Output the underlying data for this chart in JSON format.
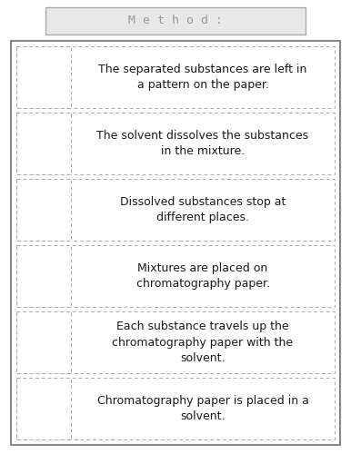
{
  "title": "M e t h o d :",
  "title_box_color": "#e8e8e8",
  "rows": [
    "The separated substances are left in\na pattern on the paper.",
    "The solvent dissolves the substances\nin the mixture.",
    "Dissolved substances stop at\ndifferent places.",
    "Mixtures are placed on\nchromatography paper.",
    "Each substance travels up the\nchromatography paper with the\nsolvent.",
    "Chromatography paper is placed in a\nsolvent."
  ],
  "text_color": "#1a1a1a",
  "title_fontsize": 9.5,
  "row_fontsize": 9.0,
  "fig_bg": "#ffffff",
  "outer_edge": "#888888",
  "inner_edge": "#aaaaaa",
  "title_edge": "#aaaaaa"
}
